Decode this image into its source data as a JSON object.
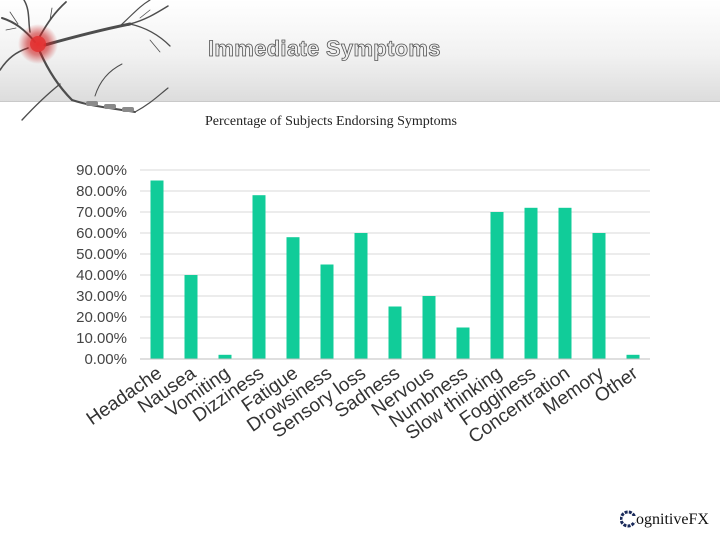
{
  "slide": {
    "title": "Immediate Symptoms",
    "subtitle": "Percentage of  Subjects Endorsing Symptoms"
  },
  "logo": {
    "text": "ognitiveFX",
    "icon": "gear-c-icon"
  },
  "colors": {
    "bar": "#11cc99",
    "grid": "#d9d9d9",
    "axis": "#bfbfbf"
  },
  "chart_data": {
    "type": "bar",
    "title": "",
    "xlabel": "",
    "ylabel": "",
    "ylim": [
      0,
      0.9
    ],
    "yticks": [
      "0.00%",
      "10.00%",
      "20.00%",
      "30.00%",
      "40.00%",
      "50.00%",
      "60.00%",
      "70.00%",
      "80.00%",
      "90.00%"
    ],
    "grid": true,
    "legend": "none",
    "categories": [
      "Headache",
      "Nausea",
      "Vomiting",
      "Dizziness",
      "Fatigue",
      "Drowsiness",
      "Sensory loss",
      "Sadness",
      "Nervous",
      "Numbness",
      "Slow thinking",
      "Fogginess",
      "Concentration",
      "Memory",
      "Other"
    ],
    "values": [
      0.85,
      0.4,
      0.02,
      0.78,
      0.58,
      0.45,
      0.6,
      0.25,
      0.3,
      0.15,
      0.7,
      0.72,
      0.72,
      0.6,
      0.02
    ]
  }
}
